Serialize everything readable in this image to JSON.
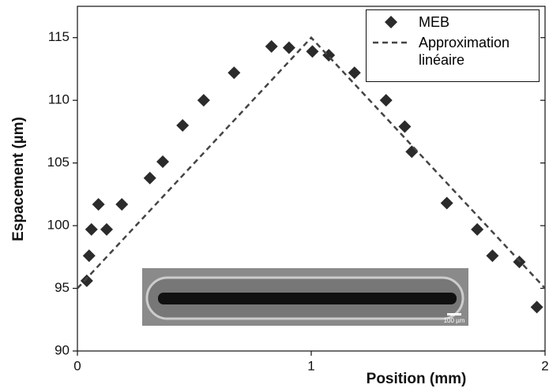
{
  "chart_data": {
    "type": "scatter",
    "xlabel": "Position (mm)",
    "ylabel": "Espacement (µm)",
    "xlim": [
      0,
      2
    ],
    "ylim": [
      90,
      117.5
    ],
    "xticks": [
      0,
      1,
      2
    ],
    "yticks": [
      90,
      95,
      100,
      105,
      110,
      115
    ],
    "legend": "upper right",
    "inset_label": "100 µm",
    "series": [
      {
        "name": "MEB",
        "type": "scatter",
        "color": "#2b2b2b",
        "x": [
          0.04,
          0.05,
          0.06,
          0.09,
          0.125,
          0.19,
          0.31,
          0.365,
          0.45,
          0.54,
          0.67,
          0.83,
          0.905,
          1.005,
          1.075,
          1.185,
          1.32,
          1.4,
          1.43,
          1.58,
          1.71,
          1.775,
          1.89,
          1.965
        ],
        "values": [
          95.6,
          97.6,
          99.7,
          101.7,
          99.7,
          101.7,
          103.8,
          105.1,
          108.0,
          110.0,
          112.2,
          114.3,
          114.2,
          113.9,
          113.6,
          112.2,
          110.0,
          107.9,
          105.9,
          101.8,
          99.7,
          97.6,
          97.1,
          93.5
        ]
      },
      {
        "name": "Approximation linéaire",
        "type": "line",
        "color": "#444444",
        "x": [
          0,
          1,
          2
        ],
        "values": [
          95,
          115,
          95
        ]
      }
    ]
  }
}
